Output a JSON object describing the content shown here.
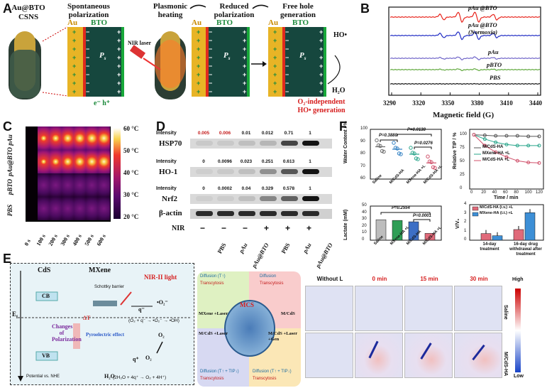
{
  "panels": {
    "a": "A",
    "b": "B",
    "c": "C",
    "d": "D",
    "e": "E",
    "f": "F"
  },
  "panel_a": {
    "cs_title": "Au@BTO",
    "cs_sub": "CSNS",
    "step1": "Spontaneous polarization",
    "step2": "Plasmonic heating",
    "step3": "Reduced polarization",
    "step4": "Free hole generation",
    "au": "Au",
    "bto": "BTO",
    "ps": "P",
    "ps_sub": "s",
    "nir": "NIR laser",
    "eh": "e⁻ h⁺",
    "ho": "HO•",
    "h2o": "H₂O",
    "o2_indep": "O₂-independent",
    "ho_gen": "HO• generation"
  },
  "panel_b": {
    "xlabel": "Magnetic field (G)",
    "ticks": [
      "3290",
      "3320",
      "3350",
      "3380",
      "3410",
      "3440"
    ],
    "series": [
      {
        "name": "pAu @BTO",
        "color": "#e8231b"
      },
      {
        "name": "pAu @BTO (Normoxia)",
        "color": "#1f2bc4"
      },
      {
        "name": "pAu",
        "color": "#6e63c8"
      },
      {
        "name": "pBTO",
        "color": "#5fa83b"
      },
      {
        "name": "PBS",
        "color": "#111111"
      }
    ]
  },
  "panel_c": {
    "rows": [
      "pAu",
      "pAu@BTO",
      "pBTO",
      "PBS"
    ],
    "times": [
      "0 s",
      "100 s",
      "200 s",
      "300 s",
      "400 s",
      "500 s",
      "600 s"
    ],
    "scale": [
      "60 °C",
      "50 °C",
      "40 °C",
      "30 °C",
      "20 °C"
    ]
  },
  "panel_d": {
    "intensity_label": "Intensity",
    "hsp70": {
      "name": "HSP70",
      "values": [
        "0.005",
        "0.006",
        "0.01",
        "0.012",
        "0.71",
        "1"
      ]
    },
    "ho1": {
      "name": "HO-1",
      "values": [
        "0",
        "0.0096",
        "0.023",
        "0.251",
        "0.613",
        "1"
      ]
    },
    "nrf2": {
      "name": "Nrf2",
      "values": [
        "0",
        "0.0002",
        "0.04",
        "0.329",
        "0.578",
        "1"
      ]
    },
    "actin": "β-actin",
    "nir": "NIR",
    "nir_signs": [
      "−",
      "−",
      "−",
      "+",
      "+",
      "+"
    ],
    "groups": [
      "PBS",
      "pAu",
      "pAu@BTO",
      "PBS",
      "pAu",
      "pAu@BTO"
    ]
  },
  "panel_e": {
    "nir2": "NIR-II light",
    "cds": "CdS",
    "mxene": "MXene",
    "schottky": "Schottky barrier",
    "cb": "CB",
    "vb": "VB",
    "ef": "E",
    "ef_sub": "f",
    "potential": "Potential vs. NHE",
    "changes": "Changes of Polarization",
    "pyro": "Pyroelectric effect",
    "dt": "ΔT",
    "o2m": "•O₂⁻",
    "o2": "O₂",
    "eq1": "(O₂ + q⁻ → •O₂⁻ → •OH)",
    "eq2": "(2H₂O + 4q⁺ → O₂ + 4H⁺)",
    "qm": "q⁻",
    "qp": "q⁺",
    "h2o": "H₂O",
    "mcs": "MCS",
    "quad_tl": {
      "title": "MXene +Laser",
      "items": [
        "Diffusion (T↑)",
        "Transcytosis"
      ]
    },
    "quad_tr": {
      "title": "M/CdS",
      "items": [
        "Diffusion",
        "Transcytosis"
      ]
    },
    "quad_bl": {
      "title": "M/CdS +Laser",
      "items": [
        "Diffusion (T↑ + TIP↓)",
        "Transcytosis"
      ]
    },
    "quad_br": {
      "title": "M/CdS +Laser +Gen",
      "items": [
        "Diffusion (T↑ + TIP↓)",
        "Transcytosis"
      ]
    },
    "micro_cols": [
      "Without L",
      "0 min",
      "15 min",
      "30 min"
    ],
    "micro_rows": [
      "Saline",
      "M/CdS-HA"
    ],
    "cb_high": "High",
    "cb_low": "Low"
  },
  "panel_f": {
    "water": {
      "ylabel": "Water Content / %",
      "yticks": [
        "60",
        "70",
        "80",
        "90",
        "100"
      ],
      "categories": [
        "Saline",
        "M/CdS-HA",
        "MXene-HA +L",
        "M/CdS-HA +L"
      ],
      "p1": "P=0.3880",
      "p2": "P=0.0138",
      "p3": "P=0.0276"
    },
    "tip": {
      "ylabel": "Relative TIP / %",
      "xlabel": "Time / min",
      "yticks": [
        "0",
        "25",
        "50",
        "75",
        "100"
      ],
      "xticks": [
        "0",
        "20",
        "40",
        "60",
        "80",
        "100",
        "120"
      ],
      "legend": [
        "M/CdS-HA",
        "MXene-HA +L",
        "M/CdS-HA +L"
      ]
    },
    "lactate": {
      "ylabel": "Lactate (mM)",
      "yticks": [
        "0",
        "10",
        "20",
        "30",
        "40",
        "50"
      ],
      "categories": [
        "Saline",
        "MXene-HA +L",
        "M/CdS-HA",
        "M/CdS-HA +L"
      ],
      "p1": "P=0.2554",
      "p2": "P=0.0001"
    },
    "volume": {
      "ylabel": "V/V₀",
      "yticks": [
        "0",
        "1",
        "2",
        "3",
        "4"
      ],
      "legend": [
        "M/CdS-HA (i.v.) +L",
        "MXene-HA (i.t.) +L"
      ],
      "groups": [
        "14-day treatment",
        "16-day drug withdrawal after treatment"
      ]
    }
  },
  "chart_data": [
    {
      "type": "line",
      "title": "EPR spectra",
      "xlabel": "Magnetic field (G)",
      "ylabel": "",
      "xlim": [
        3290,
        3440
      ],
      "series": [
        {
          "name": "pAu @BTO",
          "intensity": "strong quartet"
        },
        {
          "name": "pAu @BTO (Normoxia)",
          "intensity": "medium quartet"
        },
        {
          "name": "pAu",
          "intensity": "weak"
        },
        {
          "name": "pBTO",
          "intensity": "weak"
        },
        {
          "name": "PBS",
          "intensity": "flat"
        }
      ]
    },
    {
      "type": "scatter",
      "title": "Water content",
      "ylabel": "Water Content / %",
      "ylim": [
        60,
        100
      ],
      "categories": [
        "Saline",
        "M/CdS-HA",
        "MXene-HA +L",
        "M/CdS-HA +L"
      ],
      "values": [
        86,
        84,
        80,
        73
      ]
    },
    {
      "type": "line",
      "title": "Relative TIP",
      "xlabel": "Time / min",
      "ylabel": "Relative TIP / %",
      "x": [
        0,
        20,
        40,
        60,
        80,
        100,
        120
      ],
      "ylim": [
        0,
        110
      ],
      "series": [
        {
          "name": "M/CdS-HA",
          "values": [
            100,
            99,
            98,
            98,
            98,
            97,
            97
          ]
        },
        {
          "name": "MXene-HA +L",
          "values": [
            100,
            92,
            86,
            82,
            80,
            80,
            80
          ]
        },
        {
          "name": "M/CdS-HA +L",
          "values": [
            100,
            80,
            68,
            59,
            52,
            49,
            48
          ]
        }
      ]
    },
    {
      "type": "bar",
      "title": "Lactate",
      "ylabel": "Lactate (mM)",
      "ylim": [
        0,
        50
      ],
      "categories": [
        "Saline",
        "MXene-HA +L",
        "M/CdS-HA",
        "M/CdS-HA +L"
      ],
      "values": [
        30,
        29,
        27,
        10
      ]
    },
    {
      "type": "bar",
      "title": "Tumor volume",
      "ylabel": "V/V₀",
      "ylim": [
        0,
        4
      ],
      "categories": [
        "14-day treatment",
        "16-day drug withdrawal after treatment"
      ],
      "series": [
        {
          "name": "M/CdS-HA (i.v.) +L",
          "values": [
            0.75,
            1.2
          ]
        },
        {
          "name": "MXene-HA (i.t.) +L",
          "values": [
            0.5,
            3.1
          ]
        }
      ]
    }
  ]
}
